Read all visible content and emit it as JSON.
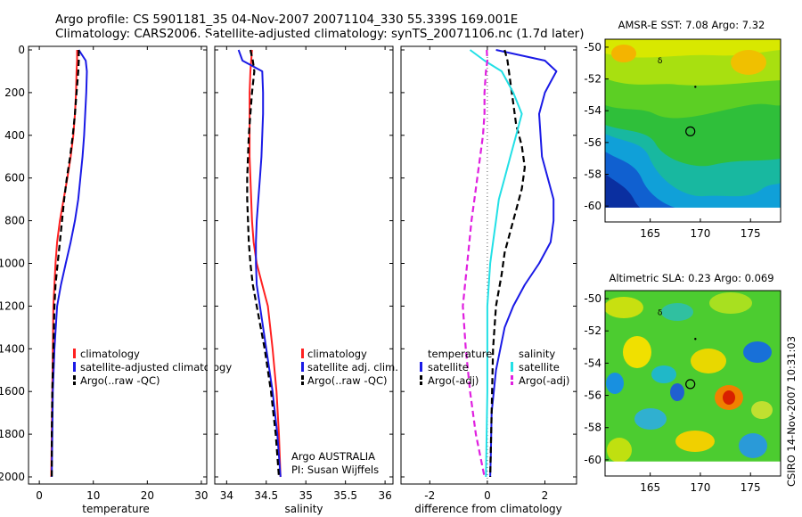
{
  "header": {
    "line1": "Argo profile: CS 5901181_35 04-Nov-2007 20071104_330 55.339S 169.001E",
    "line2": "Climatology: CARS2006. Satellite-adjusted climatology: synTS_20071106.nc (1.7d later)"
  },
  "side_text": "CSIRO 14-Nov-2007 10:31:03",
  "colors": {
    "climatology": "#ff2020",
    "satellite": "#1a1ae6",
    "argo": "#000000",
    "salinity_satellite": "#22e0e6",
    "salinity_argo": "#e020e0",
    "zero_line": "#555555"
  },
  "chart_data": [
    {
      "type": "line",
      "id": "temperature",
      "xlabel": "temperature",
      "xlim": [
        -2,
        31
      ],
      "ylim": [
        2000,
        0
      ],
      "xticks": [
        0,
        10,
        20,
        30
      ],
      "yticks": [
        0,
        200,
        400,
        600,
        800,
        1000,
        1200,
        1400,
        1600,
        1800,
        2000
      ],
      "legend": [
        "climatology",
        "satellite-adjusted climatology",
        "Argo(..raw -QC)"
      ],
      "annotations": [],
      "series": [
        {
          "name": "climatology",
          "color": "#ff2020",
          "style": "solid",
          "x": [
            7.0,
            7.0,
            6.9,
            6.8,
            6.6,
            6.3,
            5.8,
            5.2,
            4.5,
            3.8,
            3.3,
            3.0,
            2.8,
            2.6,
            2.5,
            2.4,
            2.3,
            2.2
          ],
          "y": [
            0,
            50,
            100,
            200,
            300,
            400,
            500,
            600,
            700,
            800,
            900,
            1000,
            1100,
            1200,
            1400,
            1600,
            1800,
            2000
          ]
        },
        {
          "name": "satellite-adjusted climatology",
          "color": "#1a1ae6",
          "style": "solid",
          "x": [
            7.3,
            8.6,
            8.8,
            8.7,
            8.5,
            8.3,
            8.0,
            7.6,
            7.2,
            6.6,
            5.8,
            4.9,
            4.0,
            3.3,
            2.8,
            2.5,
            2.4,
            2.3
          ],
          "y": [
            0,
            50,
            100,
            200,
            300,
            400,
            500,
            600,
            700,
            800,
            900,
            1000,
            1100,
            1200,
            1400,
            1600,
            1800,
            2000
          ]
        },
        {
          "name": "Argo(..raw -QC)",
          "color": "#000000",
          "style": "dash",
          "x": [
            7.3,
            7.3,
            7.2,
            6.9,
            6.6,
            6.2,
            5.7,
            5.1,
            4.6,
            4.2,
            3.8,
            3.4,
            3.0,
            2.8,
            2.6,
            2.4,
            2.3,
            2.3
          ],
          "y": [
            0,
            50,
            100,
            200,
            300,
            400,
            500,
            600,
            700,
            800,
            900,
            1000,
            1100,
            1200,
            1400,
            1600,
            1800,
            2000
          ]
        }
      ]
    },
    {
      "type": "line",
      "id": "salinity",
      "xlabel": "salinity",
      "xlim": [
        33.85,
        36.1
      ],
      "ylim": [
        2000,
        0
      ],
      "xticks": [
        34,
        34.5,
        35,
        35.5,
        36
      ],
      "yticks": [
        0,
        200,
        400,
        600,
        800,
        1000,
        1200,
        1400,
        1600,
        1800,
        2000
      ],
      "legend": [
        "climatology",
        "satellite adj. clim.",
        "Argo(..raw -QC)"
      ],
      "annotations": [
        "Argo AUSTRALIA",
        "PI: Susan Wijffels"
      ],
      "series": [
        {
          "name": "climatology",
          "color": "#ff2020",
          "style": "solid",
          "x": [
            34.32,
            34.31,
            34.3,
            34.29,
            34.29,
            34.29,
            34.29,
            34.3,
            34.31,
            34.32,
            34.34,
            34.38,
            34.45,
            34.52,
            34.58,
            34.63,
            34.66,
            34.68
          ],
          "y": [
            0,
            50,
            100,
            200,
            300,
            400,
            500,
            600,
            700,
            800,
            900,
            1000,
            1100,
            1200,
            1400,
            1600,
            1800,
            2000
          ]
        },
        {
          "name": "satellite adj. clim.",
          "color": "#1a1ae6",
          "style": "solid",
          "x": [
            34.15,
            34.2,
            34.45,
            34.46,
            34.46,
            34.45,
            34.44,
            34.42,
            34.4,
            34.38,
            34.37,
            34.37,
            34.38,
            34.42,
            34.5,
            34.58,
            34.64,
            34.68
          ],
          "y": [
            0,
            50,
            100,
            200,
            300,
            400,
            500,
            600,
            700,
            800,
            900,
            1000,
            1100,
            1200,
            1400,
            1600,
            1800,
            2000
          ]
        },
        {
          "name": "Argo(..raw -QC)",
          "color": "#000000",
          "style": "dash",
          "x": [
            34.3,
            34.33,
            34.35,
            34.32,
            34.3,
            34.28,
            34.27,
            34.26,
            34.26,
            34.27,
            34.28,
            34.3,
            34.33,
            34.38,
            34.48,
            34.56,
            34.62,
            34.66
          ],
          "y": [
            0,
            50,
            100,
            200,
            300,
            400,
            500,
            600,
            700,
            800,
            900,
            1000,
            1100,
            1200,
            1400,
            1600,
            1800,
            2000
          ]
        }
      ]
    },
    {
      "type": "line",
      "id": "difference",
      "xlabel": "difference from climatology",
      "xlim": [
        -3.0,
        3.1
      ],
      "ylim": [
        2000,
        0
      ],
      "xticks": [
        -2,
        0,
        2
      ],
      "yticks": [
        0,
        200,
        400,
        600,
        800,
        1000,
        1200,
        1400,
        1600,
        1800,
        2000
      ],
      "legend_groups": [
        {
          "title": "temperature",
          "items": [
            "satellite",
            "Argo(-adj)"
          ]
        },
        {
          "title": "salinity",
          "items": [
            "satellite",
            "Argo(-adj)"
          ]
        }
      ],
      "annotations": [],
      "series": [
        {
          "name": "temperature satellite",
          "color": "#1a1ae6",
          "style": "solid",
          "x": [
            0.3,
            2.0,
            2.4,
            2.2,
            2.0,
            1.8,
            1.9,
            2.3,
            2.3,
            2.2,
            1.8,
            1.3,
            0.9,
            0.6,
            0.3,
            0.15,
            0.12,
            0.1
          ],
          "y": [
            0,
            50,
            100,
            150,
            200,
            300,
            500,
            700,
            800,
            900,
            1000,
            1100,
            1200,
            1300,
            1500,
            1700,
            1900,
            2000
          ]
        },
        {
          "name": "temperature Argo(-adj)",
          "color": "#000000",
          "style": "dash",
          "x": [
            0.6,
            0.7,
            0.8,
            0.9,
            1.0,
            1.2,
            1.3,
            1.2,
            1.0,
            0.8,
            0.6,
            0.5,
            0.3,
            0.2,
            0.15,
            0.1
          ],
          "y": [
            0,
            50,
            150,
            250,
            350,
            450,
            550,
            650,
            750,
            850,
            950,
            1050,
            1200,
            1400,
            1700,
            2000
          ]
        },
        {
          "name": "salinity satellite",
          "color": "#22e0e6",
          "style": "solid",
          "x": [
            -0.6,
            -0.1,
            0.5,
            0.9,
            1.2,
            1.0,
            0.8,
            0.6,
            0.4,
            0.3,
            0.2,
            0.1,
            0.0,
            0.0,
            -0.05
          ],
          "y": [
            0,
            50,
            100,
            200,
            300,
            400,
            500,
            600,
            700,
            800,
            900,
            1000,
            1200,
            1600,
            2000
          ]
        },
        {
          "name": "salinity Argo(-adj)",
          "color": "#e020e0",
          "style": "dash",
          "x": [
            -0.02,
            0.0,
            -0.05,
            -0.1,
            -0.1,
            -0.15,
            -0.25,
            -0.35,
            -0.45,
            -0.55,
            -0.7,
            -0.85,
            -0.75,
            -0.6,
            -0.4,
            -0.1
          ],
          "y": [
            0,
            50,
            100,
            200,
            300,
            400,
            500,
            600,
            700,
            800,
            1000,
            1200,
            1400,
            1600,
            1800,
            2000
          ]
        }
      ]
    },
    {
      "type": "heatmap",
      "id": "sst-map",
      "title": "AMSR-E SST: 7.08 Argo: 7.32",
      "xlim": [
        160.5,
        178
      ],
      "ylim": [
        -61,
        -49.5
      ],
      "xticks": [
        165,
        170,
        175
      ],
      "yticks": [
        -50,
        -52,
        -54,
        -56,
        -58,
        -60
      ],
      "markers": {
        "float_circle": [
          169.0,
          -55.3
        ],
        "start_marker": [
          166.0,
          -50.8
        ],
        "small_dot": [
          169.5,
          -52.5
        ]
      }
    },
    {
      "type": "heatmap",
      "id": "sla-map",
      "title": "Altimetric SLA: 0.23 Argo: 0.069",
      "xlim": [
        160.5,
        178
      ],
      "ylim": [
        -61,
        -49.5
      ],
      "xticks": [
        165,
        170,
        175
      ],
      "yticks": [
        -50,
        -52,
        -54,
        -56,
        -58,
        -60
      ],
      "markers": {
        "float_circle": [
          169.0,
          -55.3
        ],
        "start_marker": [
          166.0,
          -50.8
        ],
        "small_dot": [
          169.5,
          -52.5
        ]
      }
    }
  ]
}
